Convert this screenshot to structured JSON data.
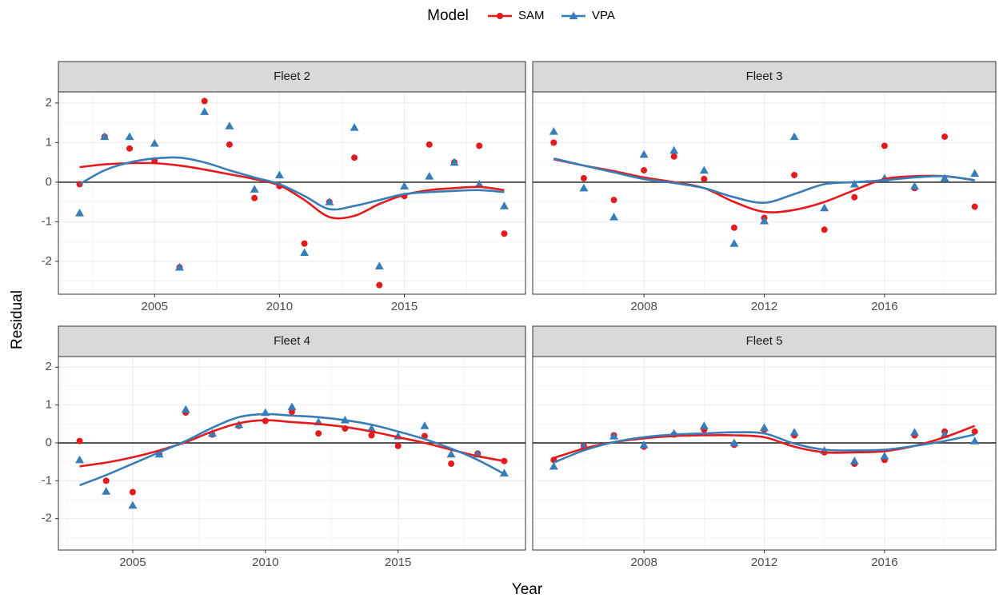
{
  "legend_title": "Model",
  "xlabel": "Year",
  "ylabel": "Residual",
  "chart_data": [
    {
      "type": "line",
      "title": "Fleet 2",
      "grid": true,
      "hline": 0,
      "x": [
        2002,
        2003,
        2004,
        2005,
        2006,
        2007,
        2008,
        2009,
        2010,
        2011,
        2012,
        2013,
        2014,
        2015,
        2016,
        2017,
        2018,
        2019
      ],
      "xlim": [
        2001.15,
        2019.85
      ],
      "xticks": [
        2005,
        2010,
        2015
      ],
      "ylim": [
        -2.83,
        2.28
      ],
      "yticks": [
        -2,
        -1,
        0,
        1,
        2
      ],
      "series": [
        {
          "name": "SAM",
          "color": "#e41a1c",
          "marker": "circle",
          "values": [
            -0.05,
            1.15,
            0.85,
            0.55,
            -2.15,
            2.05,
            0.95,
            -0.4,
            -0.1,
            -1.55,
            -0.5,
            0.62,
            -2.6,
            -0.35,
            0.95,
            0.5,
            0.92,
            -1.3
          ],
          "trend": [
            0.38,
            0.45,
            0.48,
            0.48,
            0.42,
            0.32,
            0.2,
            0.08,
            -0.08,
            -0.45,
            -0.88,
            -0.85,
            -0.55,
            -0.32,
            -0.2,
            -0.15,
            -0.12,
            -0.2
          ]
        },
        {
          "name": "VPA",
          "color": "#377eb8",
          "marker": "triangle",
          "values": [
            -0.78,
            1.15,
            1.15,
            0.98,
            -2.15,
            1.78,
            1.42,
            -0.18,
            0.18,
            -1.78,
            -0.5,
            1.38,
            -2.12,
            -0.1,
            0.15,
            0.5,
            -0.05,
            -0.6
          ],
          "trend": [
            -0.05,
            0.3,
            0.5,
            0.6,
            0.62,
            0.5,
            0.3,
            0.12,
            -0.05,
            -0.35,
            -0.68,
            -0.6,
            -0.45,
            -0.3,
            -0.25,
            -0.22,
            -0.2,
            -0.25
          ]
        }
      ]
    },
    {
      "type": "line",
      "title": "Fleet 3",
      "grid": true,
      "hline": 0,
      "x": [
        2005,
        2006,
        2007,
        2008,
        2009,
        2010,
        2011,
        2012,
        2013,
        2014,
        2015,
        2016,
        2017,
        2018,
        2019
      ],
      "xlim": [
        2004.3,
        2019.7
      ],
      "xticks": [
        2008,
        2012,
        2016
      ],
      "ylim": [
        -2.83,
        2.28
      ],
      "yticks": [
        -2,
        -1,
        0,
        1,
        2
      ],
      "series": [
        {
          "name": "SAM",
          "color": "#e41a1c",
          "marker": "circle",
          "values": [
            1.0,
            0.1,
            -0.45,
            0.3,
            0.65,
            0.08,
            -1.15,
            -0.9,
            0.18,
            -1.2,
            -0.38,
            0.92,
            -0.15,
            1.15,
            -0.62
          ],
          "trend": [
            0.58,
            0.42,
            0.28,
            0.12,
            0.0,
            -0.15,
            -0.5,
            -0.75,
            -0.7,
            -0.5,
            -0.2,
            0.08,
            0.15,
            0.15,
            0.05
          ]
        },
        {
          "name": "VPA",
          "color": "#377eb8",
          "marker": "triangle",
          "values": [
            1.28,
            -0.15,
            -0.88,
            0.7,
            0.8,
            0.3,
            -1.55,
            -0.98,
            1.15,
            -0.65,
            -0.05,
            0.1,
            -0.1,
            0.1,
            0.22
          ],
          "trend": [
            0.6,
            0.42,
            0.25,
            0.08,
            -0.02,
            -0.15,
            -0.38,
            -0.52,
            -0.3,
            -0.05,
            0.0,
            0.05,
            0.12,
            0.15,
            0.05
          ]
        }
      ]
    },
    {
      "type": "line",
      "title": "Fleet 4",
      "grid": true,
      "hline": 0,
      "x": [
        2003,
        2004,
        2005,
        2006,
        2007,
        2008,
        2009,
        2010,
        2011,
        2012,
        2013,
        2014,
        2015,
        2016,
        2017,
        2018,
        2019
      ],
      "xlim": [
        2002.2,
        2019.8
      ],
      "xticks": [
        2005,
        2010,
        2015
      ],
      "ylim": [
        -2.83,
        2.28
      ],
      "yticks": [
        -2,
        -1,
        0,
        1,
        2
      ],
      "series": [
        {
          "name": "SAM",
          "color": "#e41a1c",
          "marker": "circle",
          "values": [
            0.05,
            -1.0,
            -1.3,
            -0.3,
            0.8,
            0.22,
            0.45,
            0.58,
            0.82,
            0.25,
            0.38,
            0.2,
            -0.08,
            0.18,
            -0.55,
            -0.28,
            -0.48
          ],
          "trend": [
            -0.62,
            -0.52,
            -0.38,
            -0.2,
            0.02,
            0.3,
            0.52,
            0.6,
            0.55,
            0.5,
            0.42,
            0.3,
            0.15,
            0.0,
            -0.18,
            -0.35,
            -0.48
          ]
        },
        {
          "name": "VPA",
          "color": "#377eb8",
          "marker": "triangle",
          "values": [
            -0.45,
            -1.28,
            -1.65,
            -0.3,
            0.88,
            0.25,
            0.48,
            0.8,
            0.95,
            0.55,
            0.6,
            0.38,
            0.18,
            0.45,
            -0.3,
            -0.3,
            -0.8
          ],
          "trend": [
            -1.12,
            -0.85,
            -0.55,
            -0.25,
            0.05,
            0.4,
            0.68,
            0.76,
            0.72,
            0.68,
            0.6,
            0.48,
            0.3,
            0.1,
            -0.15,
            -0.45,
            -0.82
          ]
        }
      ]
    },
    {
      "type": "line",
      "title": "Fleet 5",
      "grid": true,
      "hline": 0,
      "x": [
        2005,
        2006,
        2007,
        2008,
        2009,
        2010,
        2011,
        2012,
        2013,
        2014,
        2015,
        2016,
        2017,
        2018,
        2019
      ],
      "xlim": [
        2004.3,
        2019.7
      ],
      "xticks": [
        2008,
        2012,
        2016
      ],
      "ylim": [
        -2.83,
        2.28
      ],
      "yticks": [
        -2,
        -1,
        0,
        1,
        2
      ],
      "series": [
        {
          "name": "SAM",
          "color": "#e41a1c",
          "marker": "circle",
          "values": [
            -0.45,
            -0.08,
            0.2,
            -0.1,
            0.22,
            0.35,
            -0.05,
            0.35,
            0.2,
            -0.25,
            -0.55,
            -0.45,
            0.2,
            0.3,
            0.3
          ],
          "trend": [
            -0.4,
            -0.15,
            0.02,
            0.12,
            0.18,
            0.2,
            0.2,
            0.15,
            -0.1,
            -0.25,
            -0.25,
            -0.22,
            -0.08,
            0.15,
            0.45
          ]
        },
        {
          "name": "VPA",
          "color": "#377eb8",
          "marker": "triangle",
          "values": [
            -0.62,
            -0.1,
            0.18,
            -0.05,
            0.25,
            0.45,
            0.0,
            0.4,
            0.28,
            -0.2,
            -0.48,
            -0.35,
            0.28,
            0.22,
            0.05
          ],
          "trend": [
            -0.52,
            -0.2,
            0.02,
            0.15,
            0.22,
            0.25,
            0.28,
            0.25,
            -0.02,
            -0.18,
            -0.2,
            -0.18,
            -0.08,
            0.05,
            0.22
          ]
        }
      ]
    }
  ]
}
